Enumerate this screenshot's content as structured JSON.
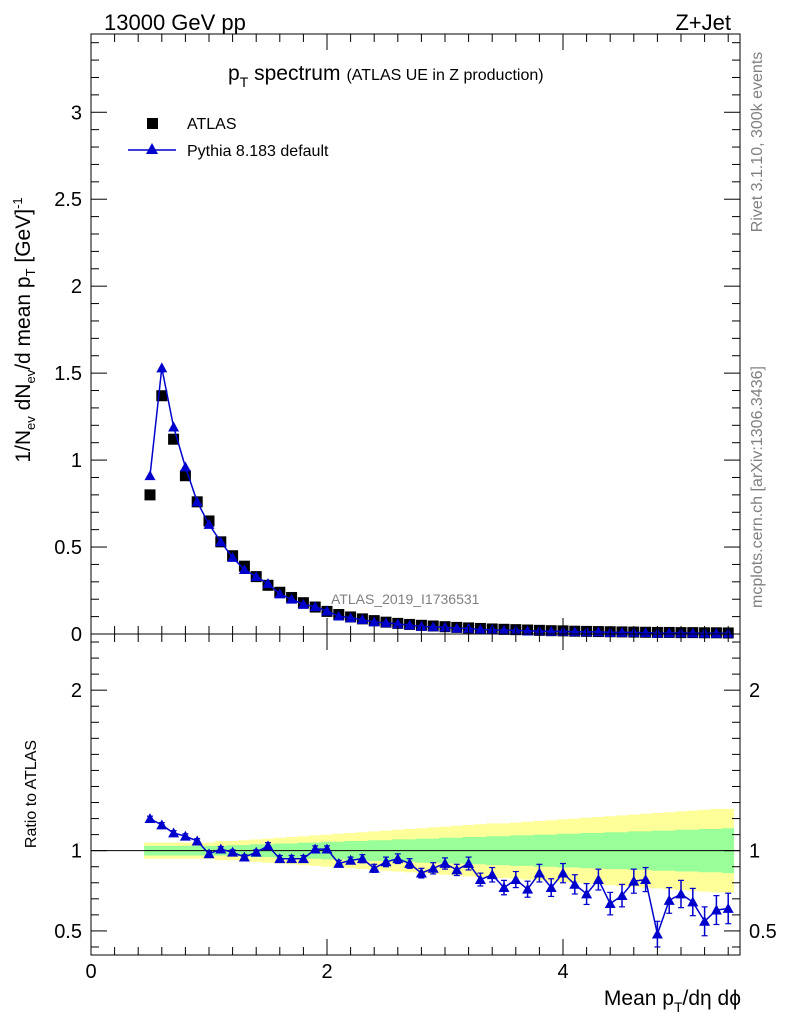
{
  "header": {
    "left": "13000 GeV pp",
    "right": "Z+Jet"
  },
  "title": {
    "main": "p",
    "main_sub": "T",
    "main_tail": " spectrum",
    "secondary": "(ATLAS UE in Z production)"
  },
  "side_labels": {
    "rivet": "Rivet 3.1.10,  300k events",
    "mcplots": "mcplots.cern.ch [arXiv:1306.3436]"
  },
  "analysis_id": "ATLAS_2019_I1736531",
  "legend": [
    {
      "name": "ATLAS",
      "marker": "square",
      "color": "#000000"
    },
    {
      "name": "Pythia 8.183 default",
      "marker": "triangle",
      "color": "#0000cc"
    }
  ],
  "axes": {
    "xlabel": "Mean p_T/dη dϕ",
    "xlabel_main": "Mean p",
    "xlabel_sub": "T",
    "xlabel_tail": "/dη dϕ",
    "ylabel_main": "1/N_ev dN_ev/d mean p_T [GeV]^-1",
    "ylabel_ratio": "Ratio to ATLAS",
    "x_ticks": [
      "0",
      "2",
      "4"
    ],
    "y_ticks_main": [
      "0",
      "0.5",
      "1",
      "1.5",
      "2",
      "2.5",
      "3"
    ],
    "y_ticks_ratio": [
      "0.5",
      "1",
      "2"
    ]
  },
  "chart_data": {
    "type": "scatter",
    "xlim": [
      0,
      5.5
    ],
    "ylim_main": [
      0,
      3.45
    ],
    "ylim_ratio": [
      0.35,
      2.35
    ],
    "x": [
      0.5,
      0.6,
      0.7,
      0.8,
      0.9,
      1.0,
      1.1,
      1.2,
      1.3,
      1.4,
      1.5,
      1.6,
      1.7,
      1.8,
      1.9,
      2.0,
      2.1,
      2.2,
      2.3,
      2.4,
      2.5,
      2.6,
      2.7,
      2.8,
      2.9,
      3.0,
      3.1,
      3.2,
      3.3,
      3.4,
      3.5,
      3.6,
      3.7,
      3.8,
      3.9,
      4.0,
      4.1,
      4.2,
      4.3,
      4.4,
      4.5,
      4.6,
      4.7,
      4.8,
      4.9,
      5.0,
      5.1,
      5.2,
      5.3,
      5.4
    ],
    "series": [
      {
        "name": "ATLAS",
        "values": [
          0.8,
          1.37,
          1.12,
          0.91,
          0.76,
          0.65,
          0.53,
          0.45,
          0.39,
          0.33,
          0.28,
          0.24,
          0.21,
          0.18,
          0.155,
          0.13,
          0.112,
          0.098,
          0.087,
          0.077,
          0.068,
          0.061,
          0.055,
          0.05,
          0.046,
          0.042,
          0.038,
          0.035,
          0.032,
          0.029,
          0.027,
          0.025,
          0.023,
          0.021,
          0.019,
          0.018,
          0.016,
          0.015,
          0.014,
          0.013,
          0.012,
          0.011,
          0.01,
          0.009,
          0.009,
          0.008,
          0.008,
          0.007,
          0.007,
          0.006
        ]
      },
      {
        "name": "Pythia 8.183 default",
        "values": [
          0.91,
          1.53,
          1.19,
          0.96,
          0.76,
          0.63,
          0.53,
          0.44,
          0.37,
          0.33,
          0.29,
          0.23,
          0.2,
          0.17,
          0.157,
          0.132,
          0.103,
          0.093,
          0.083,
          0.069,
          0.064,
          0.058,
          0.051,
          0.043,
          0.041,
          0.039,
          0.033,
          0.032,
          0.026,
          0.025,
          0.021,
          0.021,
          0.017,
          0.018,
          0.015,
          0.015,
          0.013,
          0.012,
          0.012,
          0.009,
          0.009,
          0.009,
          0.008,
          0.004,
          0.006,
          0.006,
          0.005,
          0.004,
          0.004,
          0.004
        ]
      }
    ],
    "ratio": {
      "values": [
        1.2,
        1.16,
        1.11,
        1.09,
        1.06,
        0.98,
        1.01,
        0.99,
        0.96,
        0.99,
        1.03,
        0.95,
        0.95,
        0.95,
        1.01,
        1.01,
        0.92,
        0.94,
        0.95,
        0.89,
        0.93,
        0.95,
        0.92,
        0.86,
        0.89,
        0.92,
        0.88,
        0.92,
        0.82,
        0.85,
        0.77,
        0.82,
        0.76,
        0.86,
        0.77,
        0.86,
        0.79,
        0.73,
        0.82,
        0.67,
        0.72,
        0.81,
        0.82,
        0.48,
        0.69,
        0.73,
        0.68,
        0.56,
        0.63,
        0.64
      ],
      "errors": [
        0.015,
        0.015,
        0.015,
        0.015,
        0.015,
        0.015,
        0.015,
        0.015,
        0.015,
        0.015,
        0.02,
        0.02,
        0.02,
        0.02,
        0.02,
        0.02,
        0.02,
        0.02,
        0.025,
        0.025,
        0.03,
        0.03,
        0.03,
        0.03,
        0.035,
        0.035,
        0.035,
        0.04,
        0.04,
        0.045,
        0.045,
        0.05,
        0.05,
        0.055,
        0.055,
        0.06,
        0.06,
        0.065,
        0.065,
        0.07,
        0.07,
        0.075,
        0.075,
        0.08,
        0.08,
        0.085,
        0.085,
        0.09,
        0.09,
        0.095
      ],
      "band_inner": [
        0.03,
        0.03,
        0.03,
        0.03,
        0.03,
        0.03,
        0.03,
        0.035,
        0.035,
        0.04,
        0.04,
        0.045,
        0.045,
        0.05,
        0.05,
        0.055,
        0.055,
        0.06,
        0.06,
        0.065,
        0.065,
        0.07,
        0.07,
        0.075,
        0.075,
        0.08,
        0.08,
        0.085,
        0.085,
        0.09,
        0.09,
        0.095,
        0.095,
        0.1,
        0.1,
        0.105,
        0.105,
        0.11,
        0.11,
        0.115,
        0.115,
        0.12,
        0.12,
        0.125,
        0.125,
        0.13,
        0.13,
        0.135,
        0.135,
        0.14
      ],
      "band_outer": [
        0.05,
        0.05,
        0.05,
        0.05,
        0.05,
        0.05,
        0.06,
        0.06,
        0.065,
        0.07,
        0.075,
        0.08,
        0.085,
        0.09,
        0.095,
        0.1,
        0.105,
        0.11,
        0.115,
        0.12,
        0.125,
        0.13,
        0.135,
        0.14,
        0.145,
        0.15,
        0.155,
        0.16,
        0.165,
        0.17,
        0.17,
        0.175,
        0.18,
        0.185,
        0.19,
        0.195,
        0.2,
        0.205,
        0.21,
        0.215,
        0.22,
        0.225,
        0.23,
        0.235,
        0.24,
        0.245,
        0.25,
        0.255,
        0.26,
        0.26
      ],
      "reference_line": 1
    },
    "colors": {
      "data": "#000000",
      "mc": "#0000cc",
      "band_inner": "#99ff99",
      "band_outer": "#ffff99"
    }
  }
}
